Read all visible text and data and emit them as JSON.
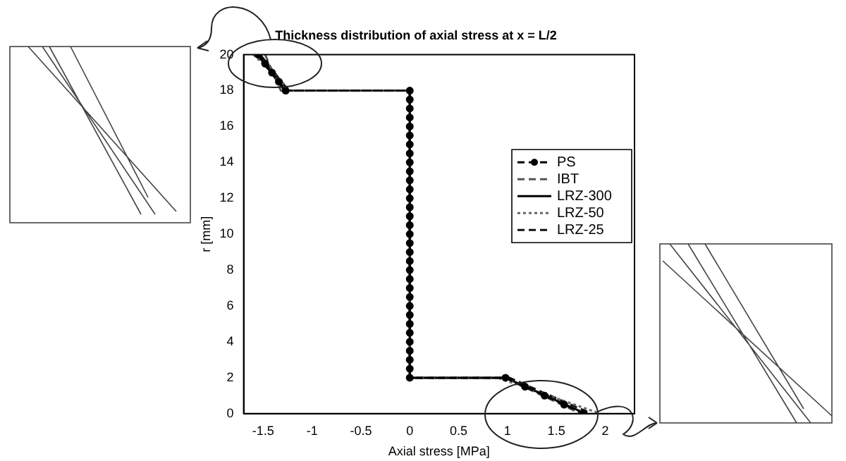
{
  "chart_data": {
    "type": "line",
    "title": "Thickness distribution of axial stress at x = L/2",
    "xlabel": "Axial stress [MPa]",
    "ylabel": "r [mm]",
    "xlim": [
      -1.7,
      2.3
    ],
    "xticks": [
      -1.5,
      -1,
      -0.5,
      0,
      0.5,
      1,
      1.5,
      2
    ],
    "ylim": [
      0,
      20
    ],
    "yticks": [
      0,
      2,
      4,
      6,
      8,
      10,
      12,
      14,
      16,
      18,
      20
    ],
    "grid": false,
    "legend": "right",
    "series": [
      {
        "name": "PS",
        "color": "#000000",
        "marker": "circle",
        "line_style": "dashed",
        "x": [
          -1.55,
          -1.48,
          -1.41,
          -1.34,
          -1.27,
          0,
          0,
          0,
          0,
          0,
          0,
          0,
          0,
          0,
          0,
          0,
          0,
          0,
          0,
          0,
          0,
          0,
          0,
          0,
          0,
          0,
          0,
          0,
          0,
          0,
          0,
          0,
          0,
          0,
          0,
          0,
          0,
          0,
          0.98,
          1.18,
          1.38,
          1.58,
          1.78
        ],
        "values": [
          20,
          19.5,
          19,
          18.5,
          18,
          18,
          17.5,
          17,
          16.5,
          16,
          15.5,
          15,
          14.5,
          14,
          13.5,
          13,
          12.5,
          12,
          11.5,
          11,
          10.5,
          10,
          9.5,
          9,
          8.5,
          8,
          7.5,
          7,
          6.5,
          6,
          5.5,
          5,
          4.5,
          4,
          3.5,
          3,
          2.5,
          2,
          2,
          1.5,
          1,
          0.5,
          0
        ]
      },
      {
        "name": "IBT",
        "color": "#555555",
        "marker": "none",
        "line_style": "dashed",
        "x": [
          -1.48,
          -1.32,
          0,
          0,
          0.97,
          1.75
        ],
        "values": [
          20,
          18,
          18,
          2,
          2,
          0
        ]
      },
      {
        "name": "LRZ-300",
        "color": "#000000",
        "marker": "none",
        "line_style": "solid",
        "x": [
          -1.56,
          -1.28,
          0,
          0,
          0.98,
          1.8
        ],
        "values": [
          20,
          18,
          18,
          2,
          2,
          0
        ]
      },
      {
        "name": "LRZ-50",
        "color": "#666666",
        "marker": "none",
        "line_style": "dotted",
        "x": [
          -1.6,
          -1.22,
          0,
          0,
          0.9,
          1.95
        ],
        "values": [
          20,
          18,
          18,
          2,
          2,
          0
        ]
      },
      {
        "name": "LRZ-25",
        "color": "#111111",
        "marker": "none",
        "line_style": "dashed",
        "x": [
          -1.53,
          -1.24,
          0,
          0,
          1.02,
          1.86
        ],
        "values": [
          20,
          18,
          18,
          2,
          2,
          0
        ]
      }
    ]
  }
}
